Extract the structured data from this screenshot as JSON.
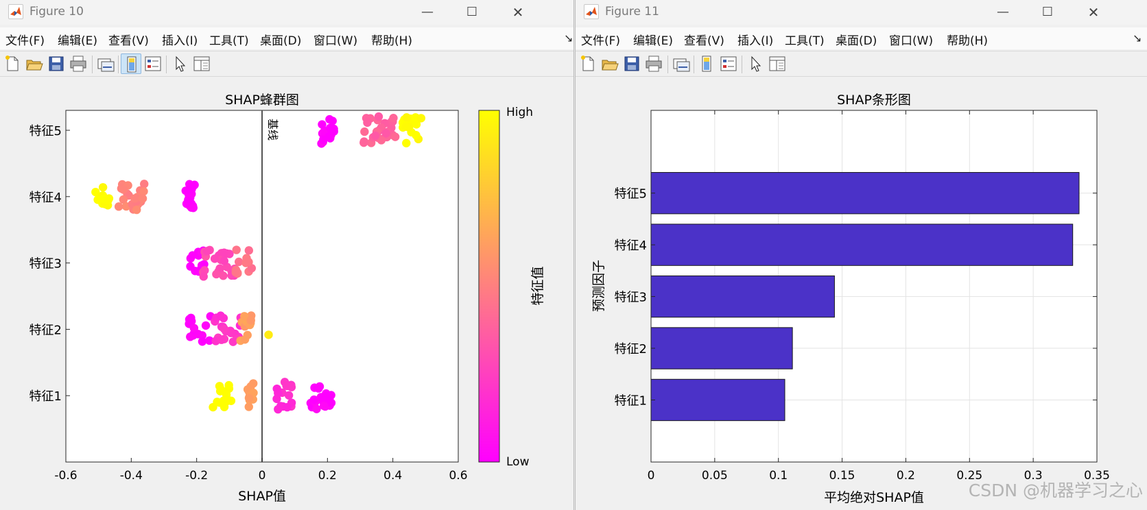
{
  "windows": [
    {
      "title": "Figure 10",
      "menu": [
        "文件(F)",
        "编辑(E)",
        "查看(V)",
        "插入(I)",
        "工具(T)",
        "桌面(D)",
        "窗口(W)",
        "帮助(H)"
      ]
    },
    {
      "title": "Figure 11",
      "menu": [
        "文件(F)",
        "编辑(E)",
        "查看(V)",
        "插入(I)",
        "工具(T)",
        "桌面(D)",
        "窗口(W)",
        "帮助(H)"
      ]
    }
  ],
  "watermark": "CSDN @机器学习之心",
  "chart_data": [
    {
      "type": "scatter",
      "title": "SHAP蜂群图",
      "xlabel": "SHAP值",
      "ylabel": "",
      "xlim": [
        -0.6,
        0.6
      ],
      "xticks": [
        -0.6,
        -0.4,
        -0.2,
        0,
        0.2,
        0.4,
        0.6
      ],
      "xtick_labels": [
        "-0.6",
        "-0.4",
        "-0.2",
        "0",
        "0.2",
        "0.4",
        "0.6"
      ],
      "categories": [
        "特征1",
        "特征2",
        "特征3",
        "特征4",
        "特征5"
      ],
      "baseline": {
        "x": 0,
        "label": "基线"
      },
      "colorbar": {
        "label": "特征值",
        "high": "High",
        "low": "Low",
        "low_color": "#ff00ff",
        "high_color": "#ffff00"
      },
      "grid": false,
      "clusters": [
        {
          "feature": "特征1",
          "center": -0.12,
          "spread": 0.03,
          "count": 14,
          "value": 1.0
        },
        {
          "feature": "特征1",
          "center": -0.035,
          "spread": 0.01,
          "count": 12,
          "value": 0.62
        },
        {
          "feature": "特征1",
          "center": 0.07,
          "spread": 0.025,
          "count": 16,
          "value": 0.18
        },
        {
          "feature": "特征1",
          "center": 0.18,
          "spread": 0.035,
          "count": 20,
          "value": 0.0
        },
        {
          "feature": "特征2",
          "center": -0.19,
          "spread": 0.035,
          "count": 14,
          "value": 0.0
        },
        {
          "feature": "特征2",
          "center": -0.11,
          "spread": 0.045,
          "count": 20,
          "value": 0.2
        },
        {
          "feature": "特征2",
          "center": -0.05,
          "spread": 0.02,
          "count": 12,
          "value": 0.62
        },
        {
          "feature": "特征2",
          "center": 0.02,
          "spread": 0.0,
          "count": 1,
          "value": 0.95
        },
        {
          "feature": "特征3",
          "center": -0.2,
          "spread": 0.025,
          "count": 12,
          "value": 0.0
        },
        {
          "feature": "特征3",
          "center": -0.13,
          "spread": 0.05,
          "count": 26,
          "value": 0.3
        },
        {
          "feature": "特征3",
          "center": -0.06,
          "spread": 0.03,
          "count": 12,
          "value": 0.45
        },
        {
          "feature": "特征4",
          "center": -0.49,
          "spread": 0.025,
          "count": 12,
          "value": 1.0
        },
        {
          "feature": "特征4",
          "center": -0.4,
          "spread": 0.04,
          "count": 26,
          "value": 0.52
        },
        {
          "feature": "特征4",
          "center": -0.22,
          "spread": 0.015,
          "count": 16,
          "value": 0.0
        },
        {
          "feature": "特征5",
          "center": 0.2,
          "spread": 0.02,
          "count": 14,
          "value": 0.0
        },
        {
          "feature": "特征5",
          "center": 0.36,
          "spread": 0.05,
          "count": 28,
          "value": 0.38
        },
        {
          "feature": "特征5",
          "center": 0.46,
          "spread": 0.03,
          "count": 18,
          "value": 1.0
        }
      ]
    },
    {
      "type": "bar",
      "orientation": "horizontal",
      "title": "SHAP条形图",
      "xlabel": "平均绝对SHAP值",
      "ylabel": "预测因子",
      "categories": [
        "特征1",
        "特征2",
        "特征3",
        "特征4",
        "特征5"
      ],
      "values": [
        0.105,
        0.111,
        0.144,
        0.331,
        0.336
      ],
      "xlim": [
        0,
        0.35
      ],
      "xticks": [
        0,
        0.05,
        0.1,
        0.15,
        0.2,
        0.25,
        0.3,
        0.35
      ],
      "xtick_labels": [
        "0",
        "0.05",
        "0.1",
        "0.15",
        "0.2",
        "0.25",
        "0.3",
        "0.35"
      ],
      "bar_color": "#4b32c8",
      "grid": true
    }
  ]
}
